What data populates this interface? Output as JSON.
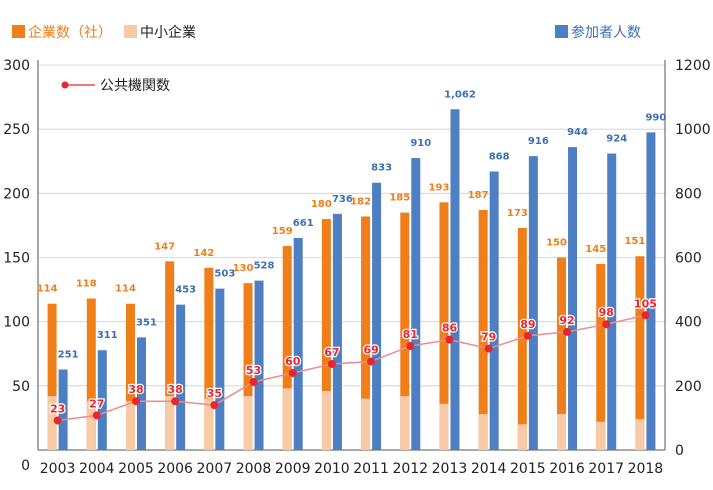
{
  "chart_data": {
    "type": "bar",
    "categories": [
      "2003",
      "2004",
      "2005",
      "2006",
      "2007",
      "2008",
      "2009",
      "2010",
      "2011",
      "2012",
      "2013",
      "2014",
      "2015",
      "2016",
      "2017",
      "2018"
    ],
    "series": [
      {
        "name": "企業数（社）",
        "axis": "left",
        "color": "#f07f1a",
        "values": [
          114,
          118,
          114,
          147,
          142,
          130,
          159,
          180,
          182,
          185,
          193,
          187,
          173,
          150,
          145,
          151
        ],
        "labels": [
          "114",
          "118",
          "114",
          "147",
          "142",
          "130",
          "159",
          "180",
          "182",
          "185",
          "193",
          "187",
          "173",
          "150",
          "145",
          "151"
        ]
      },
      {
        "name": "中小企業",
        "axis": "left",
        "color": "#f8cba6",
        "values": [
          42,
          38,
          38,
          42,
          40,
          42,
          48,
          46,
          40,
          42,
          36,
          28,
          20,
          28,
          22,
          24
        ]
      },
      {
        "name": "参加者人数",
        "axis": "right",
        "color": "#4e7fc2",
        "values": [
          251,
          311,
          351,
          453,
          503,
          528,
          661,
          736,
          833,
          910,
          1062,
          868,
          916,
          944,
          924,
          990
        ],
        "labels": [
          "251",
          "311",
          "351",
          "453",
          "503",
          "528",
          "661",
          "736",
          "833",
          "910",
          "1,062",
          "868",
          "916",
          "944",
          "924",
          "990"
        ]
      },
      {
        "name": "公共機関数",
        "axis": "left",
        "type": "line",
        "color": "#e8262f",
        "values": [
          23,
          27,
          38,
          38,
          35,
          53,
          60,
          67,
          69,
          81,
          86,
          79,
          89,
          92,
          98,
          105
        ],
        "labels": [
          "23",
          "27",
          "38",
          "38",
          "35",
          "53",
          "60",
          "67",
          "69",
          "81",
          "86",
          "79",
          "89",
          "92",
          "98",
          "105"
        ]
      }
    ],
    "y_left": {
      "ylim": [
        0,
        300
      ],
      "ticks": [
        "0",
        "50",
        "100",
        "150",
        "200",
        "250",
        "300"
      ]
    },
    "y_right": {
      "ylim": [
        0,
        1200
      ],
      "ticks": [
        "0",
        "200",
        "400",
        "600",
        "800",
        "1000",
        "1200"
      ]
    },
    "legend": {
      "placement": "top"
    }
  }
}
